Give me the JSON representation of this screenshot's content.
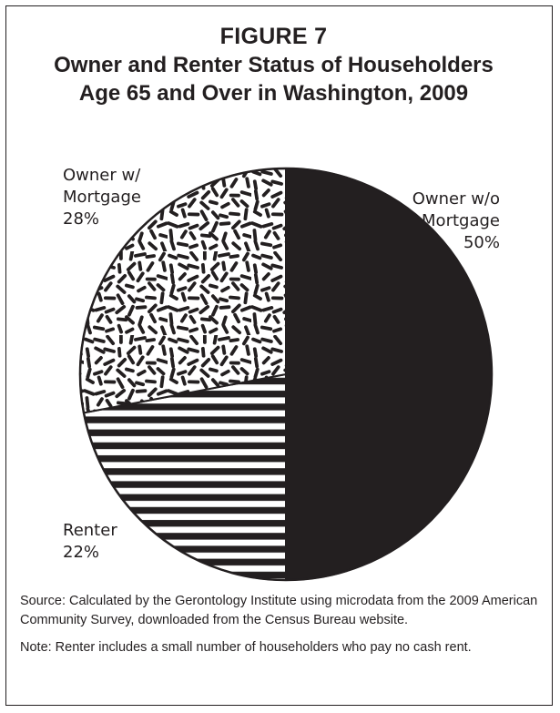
{
  "figure": {
    "label": "FIGURE 7",
    "title_line1": "Owner and Renter Status of Householders",
    "title_line2": "Age 65 and Over in Washington, 2009"
  },
  "chart_data": {
    "type": "pie",
    "title": "Owner and Renter Status of Householders Age 65 and Over in Washington, 2009",
    "unit": "%",
    "slices": [
      {
        "label_lines": [
          "Owner w/o",
          "Mortgage"
        ],
        "value": 50,
        "value_label": "50%",
        "pattern": "solid-black"
      },
      {
        "label_lines": [
          "Renter"
        ],
        "value": 22,
        "value_label": "22%",
        "pattern": "horizontal-stripes"
      },
      {
        "label_lines": [
          "Owner w/",
          "Mortgage"
        ],
        "value": 28,
        "value_label": "28%",
        "pattern": "random-dashes"
      }
    ],
    "start": "12 o'clock",
    "direction": "clockwise",
    "colors": {
      "ink": "#231f20",
      "background": "#ffffff"
    }
  },
  "notes": {
    "source": "Source: Calculated by the Gerontology Institute using microdata from the 2009 American Community Survey, downloaded from the Census Bureau website.",
    "note": "Note: Renter includes a small number of householders who pay no cash rent."
  }
}
